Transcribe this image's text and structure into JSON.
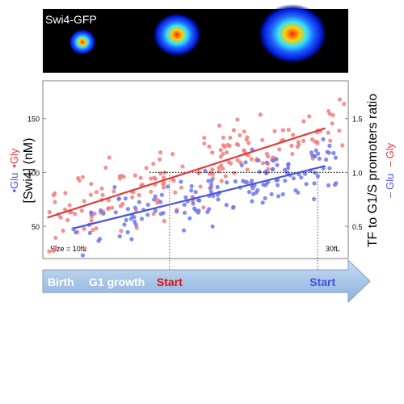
{
  "image_strip": {
    "label": "Swi4-GFP",
    "cell_stages": [
      "small",
      "medium",
      "large"
    ]
  },
  "chart_data": {
    "type": "scatter",
    "ylabel_left": "[Swi4] (nM)",
    "ylabel_right": "TF to G1/S promoters ratio",
    "legend_left": [
      {
        "marker": "•",
        "name": "Glu",
        "color": "#4a55e0"
      },
      {
        "marker": "•",
        "name": "Gly",
        "color": "#e43a3a"
      }
    ],
    "legend_right": [
      {
        "marker": "–",
        "name": "Glu",
        "color": "#4a55e0"
      },
      {
        "marker": "–",
        "name": "Gly",
        "color": "#e43a3a"
      }
    ],
    "xlim": [
      10,
      30
    ],
    "x_start_label": "Size = 10fL",
    "x_end_label": "30fL",
    "ylim_left": [
      20,
      185
    ],
    "yticks_left": [
      "50",
      "100",
      "150"
    ],
    "yticks_left_values": [
      50,
      100,
      150
    ],
    "ylim_right": [
      0.2,
      1.85
    ],
    "yticks_right": [
      "0.5",
      "1.0",
      "1.5"
    ],
    "yticks_right_values": [
      0.5,
      1.0,
      1.5
    ],
    "reference_line_ratio": 1.0,
    "series": [
      {
        "name": "Gly",
        "color": "#e43a3a",
        "point_color": "#f08080",
        "trend": {
          "x": [
            10.3,
            28.5
          ],
          "y": [
            58,
            141
          ]
        },
        "start_size": 18.3
      },
      {
        "name": "Glu",
        "color": "#4a55e0",
        "point_color": "#6f78ea",
        "trend": {
          "x": [
            12.0,
            28.5
          ],
          "y": [
            48,
            106
          ]
        },
        "start_size": 28.0
      }
    ]
  },
  "timeline": {
    "birth": "Birth",
    "g1_growth": "G1 growth",
    "start_gly": "Start",
    "start_glu": "Start",
    "start_gly_color": "#e01010",
    "start_glu_color": "#4050e0"
  }
}
